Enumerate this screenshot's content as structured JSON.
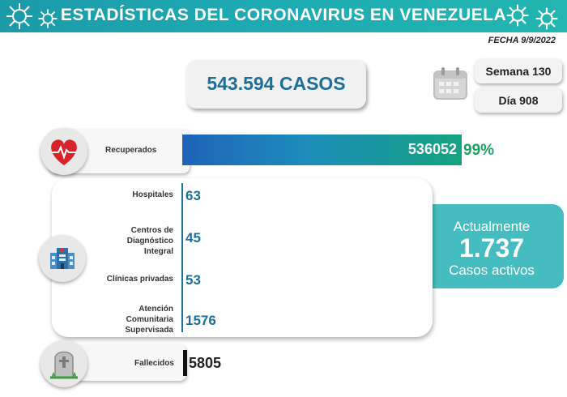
{
  "header": {
    "title": "ESTADÍSTICAS DEL CORONAVIRUS EN VENEZUELA",
    "date": "FECHA 9/9/2022"
  },
  "summary": {
    "total_cases": "543.594 CASOS",
    "week": "Semana 130",
    "day": "Día 908"
  },
  "recovered": {
    "label": "Recuperados",
    "value": "536052",
    "percent": "99%"
  },
  "hospitalization": {
    "items": [
      {
        "label": "Hospitales",
        "value": "63"
      },
      {
        "label": "Centros de Diagnóstico Integral",
        "value": "45"
      },
      {
        "label": "Clínicas privadas",
        "value": "53"
      },
      {
        "label": "Atención Comunitaria Supervisada",
        "value": "1576"
      }
    ]
  },
  "active": {
    "line1": "Actualmente",
    "value": "1.737",
    "line2": "Casos activos"
  },
  "deceased": {
    "label": "Fallecidos",
    "value": "5805"
  },
  "icons": {
    "virus": "virus-icon",
    "calendar": "calendar-icon",
    "heart": "heart-icon",
    "hospital": "hospital-icon",
    "tombstone": "tombstone-icon"
  },
  "colors": {
    "banner": "#1eaab3",
    "accent_blue": "#1d6f98",
    "recovered_green": "#18a35c",
    "active_teal": "#45bcbf"
  }
}
